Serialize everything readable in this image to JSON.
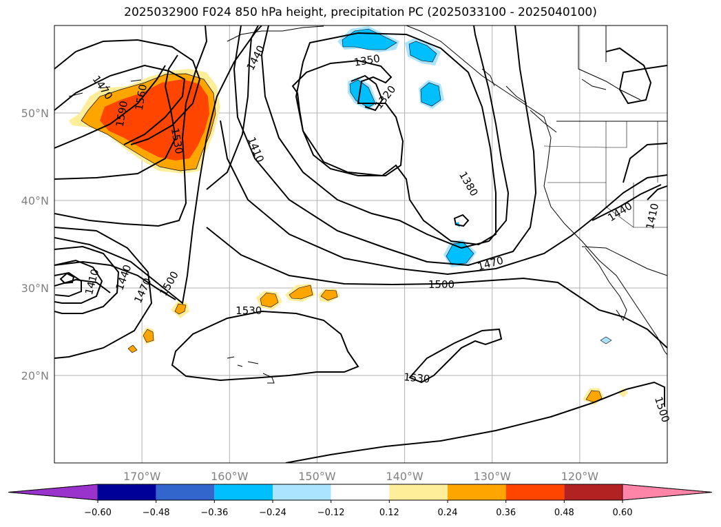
{
  "title": "2025032900 F024 850 hPa height, precipitation PC (2025033100 - 2025040100)",
  "chart_data": {
    "type": "map",
    "projection": "PlateCarree",
    "extent": {
      "lon": [
        -180,
        -110
      ],
      "lat": [
        10,
        60
      ]
    },
    "grid": true,
    "lat_ticks": [
      {
        "value": 20,
        "label": "20°N"
      },
      {
        "value": 30,
        "label": "30°N"
      },
      {
        "value": 40,
        "label": "40°N"
      },
      {
        "value": 50,
        "label": "50°N"
      }
    ],
    "lon_ticks": [
      {
        "value": -170,
        "label": "170°W"
      },
      {
        "value": -160,
        "label": "160°W"
      },
      {
        "value": -150,
        "label": "150°W"
      },
      {
        "value": -140,
        "label": "140°W"
      },
      {
        "value": -130,
        "label": "130°W"
      },
      {
        "value": -120,
        "label": "120°W"
      }
    ],
    "height_contour_labels": [
      {
        "text": "1590",
        "lon": -172.3,
        "lat": 49.9,
        "rotate": -80
      },
      {
        "text": "1560",
        "lon": -170.1,
        "lat": 51.8,
        "rotate": -80
      },
      {
        "text": "1530",
        "lon": -166.0,
        "lat": 46.8,
        "rotate": 80
      },
      {
        "text": "1440",
        "lon": -157.0,
        "lat": 56.3,
        "rotate": -62
      },
      {
        "text": "1410",
        "lon": -157.0,
        "lat": 45.8,
        "rotate": 68
      },
      {
        "text": "1350",
        "lon": -144.3,
        "lat": 56.0,
        "rotate": -10
      },
      {
        "text": "1320",
        "lon": -142.2,
        "lat": 51.8,
        "rotate": -52
      },
      {
        "text": "1380",
        "lon": -132.7,
        "lat": 41.9,
        "rotate": 60
      },
      {
        "text": "1470",
        "lon": -130.2,
        "lat": 32.8,
        "rotate": -15
      },
      {
        "text": "1500",
        "lon": -135.8,
        "lat": 30.4,
        "rotate": 0
      },
      {
        "text": "1530",
        "lon": -157.8,
        "lat": 27.4,
        "rotate": 0
      },
      {
        "text": "1530",
        "lon": -138.6,
        "lat": 19.7,
        "rotate": 5
      },
      {
        "text": "1410",
        "lon": -175.7,
        "lat": 30.7,
        "rotate": -75
      },
      {
        "text": "1440",
        "lon": -172.1,
        "lat": 31.2,
        "rotate": -70
      },
      {
        "text": "1470",
        "lon": -169.9,
        "lat": 29.7,
        "rotate": -65
      },
      {
        "text": "1500",
        "lon": -166.9,
        "lat": 30.5,
        "rotate": -60
      },
      {
        "text": "1470",
        "lon": -174.5,
        "lat": 52.9,
        "rotate": 55
      },
      {
        "text": "1440",
        "lon": -115.4,
        "lat": 38.7,
        "rotate": -32
      },
      {
        "text": "1410",
        "lon": -111.7,
        "lat": 38.2,
        "rotate": -78
      },
      {
        "text": "1500",
        "lon": -110.6,
        "lat": 16.1,
        "rotate": 72
      }
    ],
    "colorbar": {
      "boundaries": [
        -0.72,
        -0.6,
        -0.48,
        -0.36,
        -0.24,
        -0.12,
        0.12,
        0.24,
        0.36,
        0.48,
        0.6,
        0.72
      ],
      "colors": [
        "#9933cc",
        "#000099",
        "#3366cc",
        "#00bfff",
        "#aae4ff",
        "#ffffff",
        "#ffee99",
        "#ffa500",
        "#ff4500",
        "#b22222",
        "#ff85a8"
      ],
      "under_color": "#9933cc",
      "over_color": "#ff85a8",
      "tick_labels": [
        "−0.60",
        "−0.48",
        "−0.36",
        "−0.24",
        "−0.12",
        "0.12",
        "0.24",
        "0.36",
        "0.48",
        "0.60"
      ],
      "extend": "both"
    },
    "colors": {
      "pos_light": "#ffee99",
      "pos_mid": "#ffa500",
      "pos_strong": "#ff4500",
      "neg_light": "#aae4ff",
      "neg_mid": "#00bfff",
      "gridline": "#b0b0b0",
      "contour": "#000000"
    }
  }
}
